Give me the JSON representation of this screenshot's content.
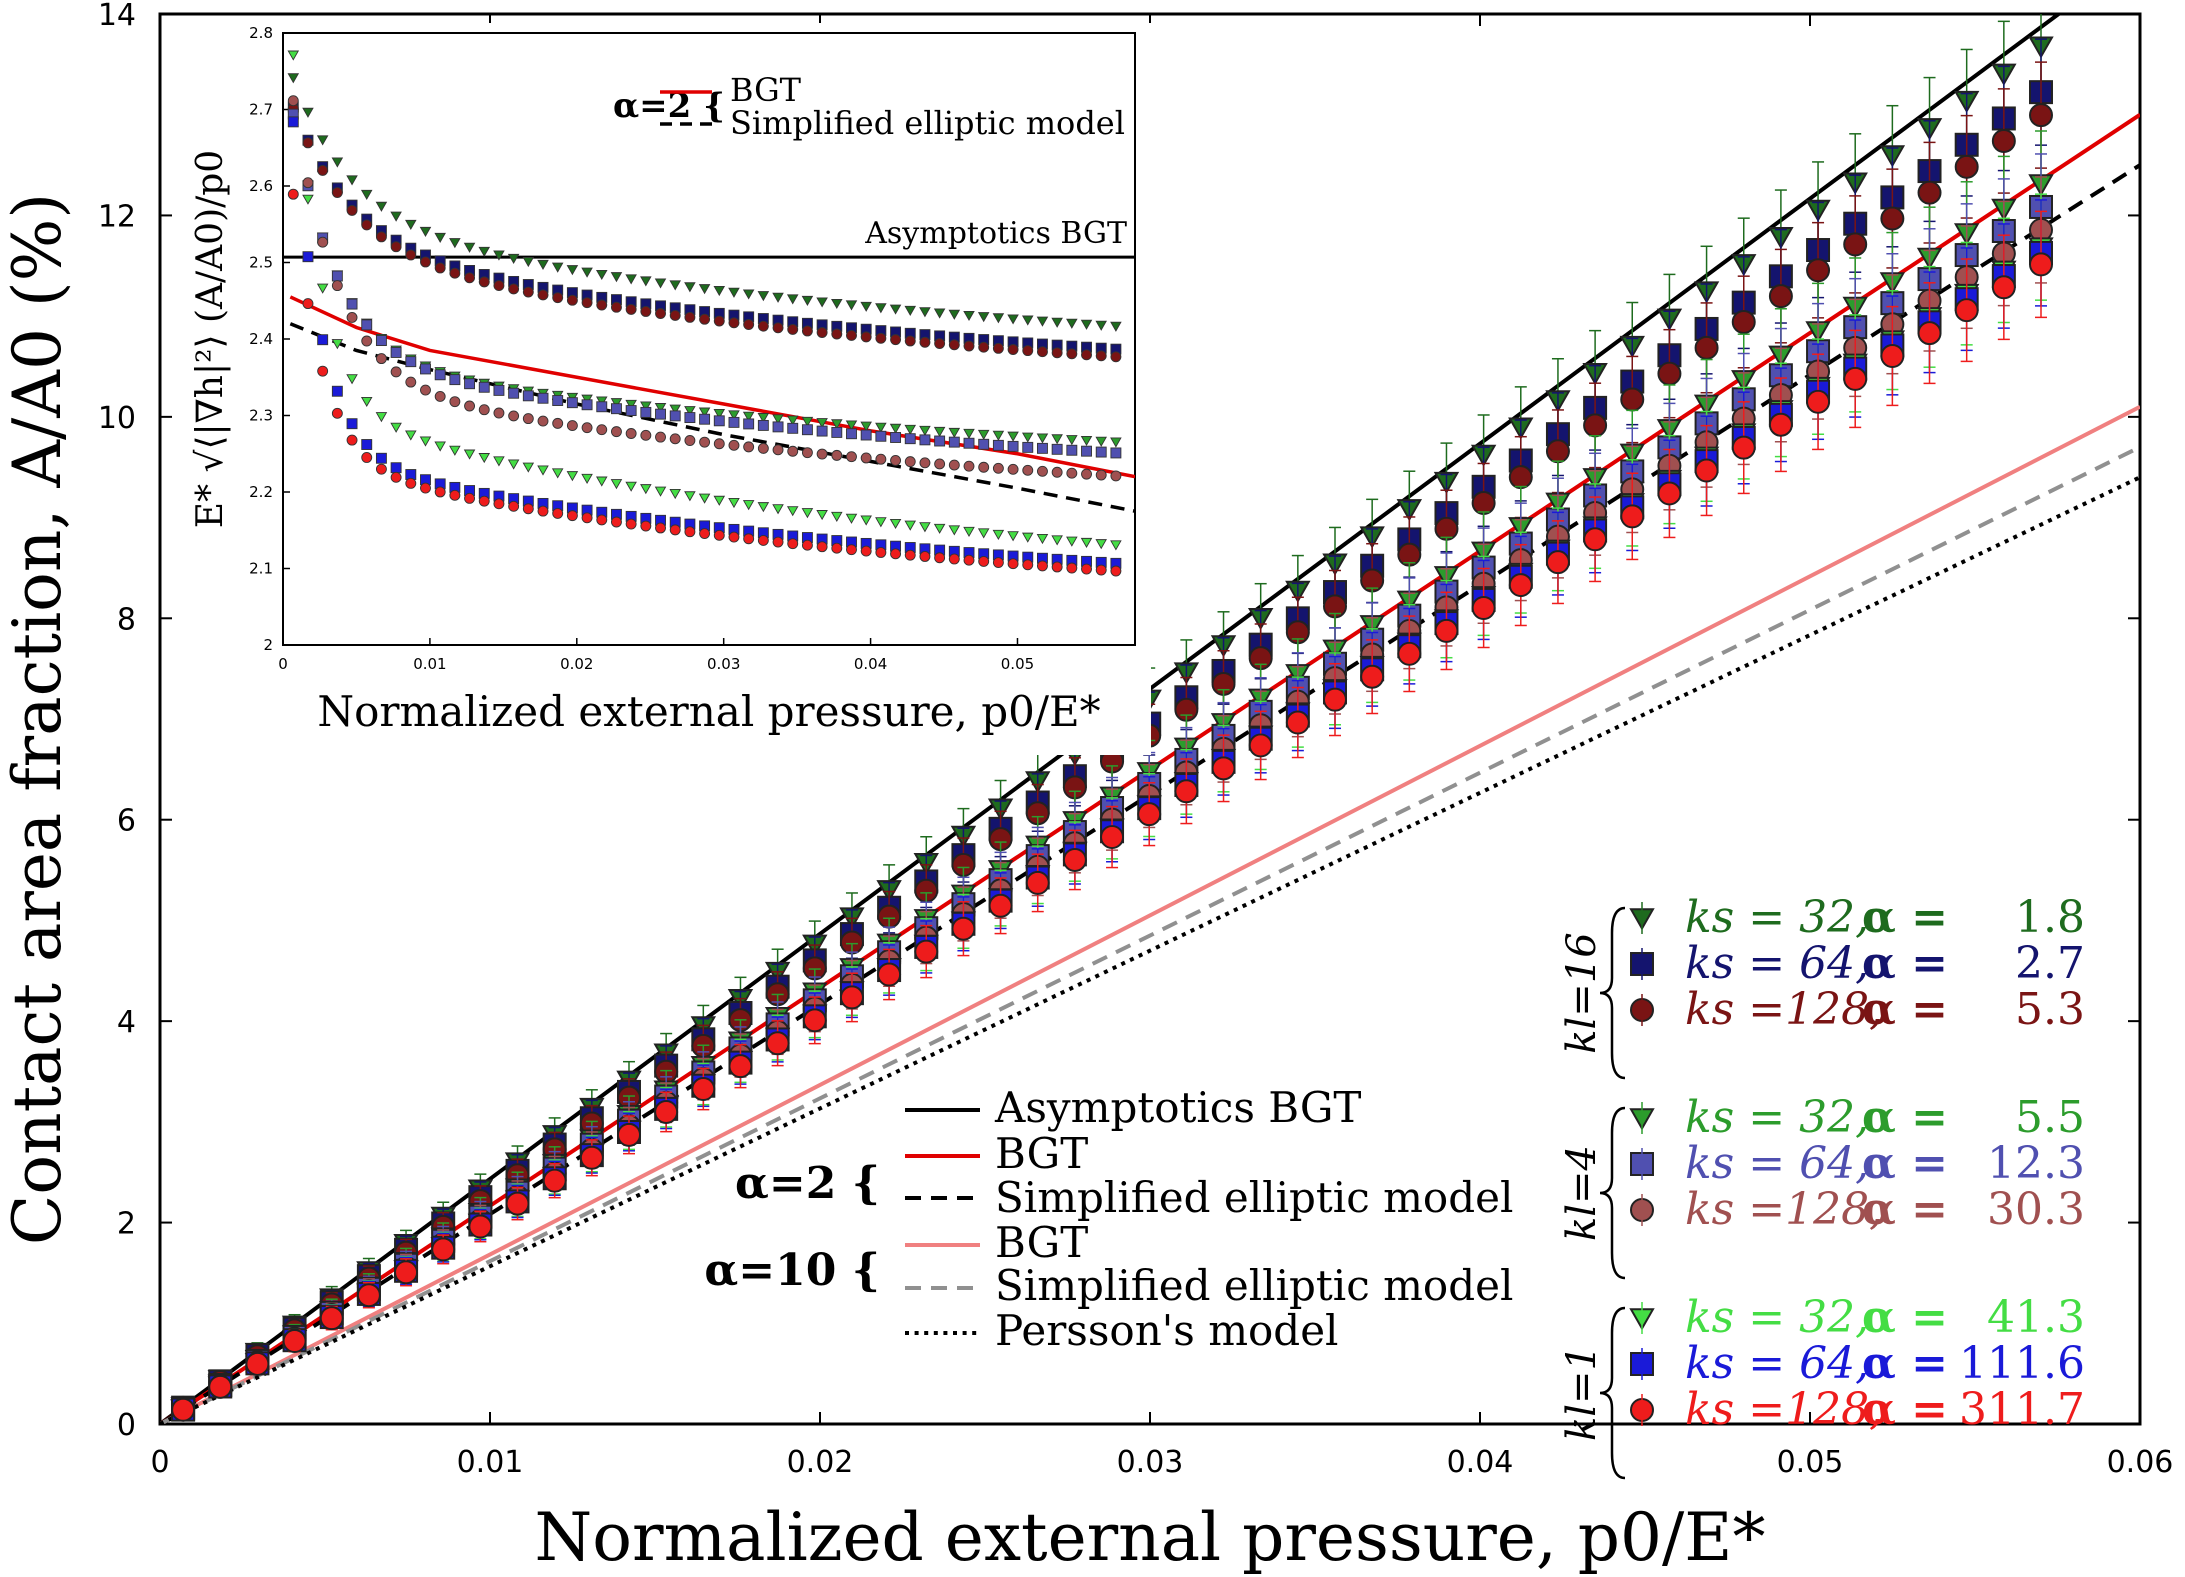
{
  "chart_data": [
    {
      "id": "main",
      "type": "scatter",
      "xlabel": "Normalized external pressure, p0/E*",
      "ylabel": "Contact area fraction, A/A0 (%)",
      "xlim": [
        0,
        0.06
      ],
      "ylim": [
        0,
        14
      ],
      "xticks": [
        "0",
        "0.01",
        "0.02",
        "0.03",
        "0.04",
        "0.05",
        "0.06"
      ],
      "yticks": [
        "0",
        "2",
        "4",
        "6",
        "8",
        "10",
        "12",
        "14"
      ],
      "lines": [
        {
          "name": "Asymptotics BGT",
          "color": "#000000",
          "dash": "solid",
          "x": [
            0,
            0.06
          ],
          "y": [
            0,
            14.6
          ]
        },
        {
          "name": "BGT (alpha=2)",
          "color": "#e00000",
          "dash": "solid",
          "x": [
            0,
            0.06
          ],
          "y": [
            0,
            13.0
          ]
        },
        {
          "name": "Simplified elliptic model (alpha=2)",
          "color": "#000000",
          "dash": "dashed",
          "x": [
            0,
            0.06
          ],
          "y": [
            0,
            12.5
          ]
        },
        {
          "name": "BGT (alpha=10)",
          "color": "#f08080",
          "dash": "solid",
          "x": [
            0,
            0.06
          ],
          "y": [
            0,
            10.1
          ]
        },
        {
          "name": "Simplified elliptic model (alpha=10)",
          "color": "#909090",
          "dash": "dashed",
          "x": [
            0,
            0.06
          ],
          "y": [
            0,
            9.7
          ]
        },
        {
          "name": "Persson's model",
          "color": "#000000",
          "dash": "dotted",
          "x": [
            0,
            0.06
          ],
          "y": [
            0,
            9.4
          ]
        }
      ],
      "series": [
        {
          "name": "kl=16, ks=32",
          "marker": "triangle",
          "color": "#1e6b1e",
          "slope": 240,
          "x_end": 0.057
        },
        {
          "name": "kl=16, ks=64",
          "marker": "square",
          "color": "#14146e",
          "slope": 232,
          "x_end": 0.057
        },
        {
          "name": "kl=16, ks=128",
          "marker": "circle",
          "color": "#7a1414",
          "slope": 228,
          "x_end": 0.057
        },
        {
          "name": "kl=4, ks=32",
          "marker": "triangle",
          "color": "#2c9c2c",
          "slope": 216,
          "x_end": 0.057
        },
        {
          "name": "kl=4, ks=64",
          "marker": "square",
          "color": "#5050b0",
          "slope": 212,
          "x_end": 0.057
        },
        {
          "name": "kl=4, ks=128",
          "marker": "circle",
          "color": "#a05050",
          "slope": 208,
          "x_end": 0.057
        },
        {
          "name": "kl=1, ks=32",
          "marker": "triangle",
          "color": "#44dd44",
          "slope": 205,
          "x_end": 0.057
        },
        {
          "name": "kl=1, ks=64",
          "marker": "square",
          "color": "#1a1ad8",
          "slope": 204,
          "x_end": 0.057
        },
        {
          "name": "kl=1, ks=128",
          "marker": "circle",
          "color": "#ee1c1c",
          "slope": 202,
          "x_end": 0.057
        }
      ],
      "legend_lines": {
        "asym": "Asymptotics BGT",
        "a2": "α=2 {",
        "a2_bgt": "BGT",
        "a2_sem": "Simplified elliptic model",
        "a10": "α=10 {",
        "a10_bgt": "BGT",
        "a10_sem": "Simplified elliptic model",
        "persson": "Persson's model"
      },
      "legend_groups": [
        {
          "kl": "kl=16",
          "rows": [
            {
              "ks": "ks = 32,",
              "alpha": "α =",
              "val": "1.8",
              "color": "#1e6b1e"
            },
            {
              "ks": "ks = 64,",
              "alpha": "α =",
              "val": "2.7",
              "color": "#14146e"
            },
            {
              "ks": "ks =128,",
              "alpha": "α =",
              "val": "5.3",
              "color": "#7a1414"
            }
          ]
        },
        {
          "kl": "kl=4",
          "rows": [
            {
              "ks": "ks = 32,",
              "alpha": "α =",
              "val": "5.5",
              "color": "#2c9c2c"
            },
            {
              "ks": "ks = 64,",
              "alpha": "α =",
              "val": "12.3",
              "color": "#5050b0"
            },
            {
              "ks": "ks =128,",
              "alpha": "α =",
              "val": "30.3",
              "color": "#a05050"
            }
          ]
        },
        {
          "kl": "kl=1",
          "rows": [
            {
              "ks": "ks = 32,",
              "alpha": "α =",
              "val": "41.3",
              "color": "#44dd44"
            },
            {
              "ks": "ks = 64,",
              "alpha": "α =",
              "val": "111.6",
              "color": "#1a1ad8"
            },
            {
              "ks": "ks =128,",
              "alpha": "α =",
              "val": "311.7",
              "color": "#ee1c1c"
            }
          ]
        }
      ]
    },
    {
      "id": "inset",
      "type": "scatter",
      "xlabel": "Normalized external pressure, p0/E*",
      "ylabel": "E* √⟨|∇h|²⟩ (A/A0)/p0",
      "xlim": [
        0,
        0.058
      ],
      "ylim": [
        2,
        2.8
      ],
      "xticks": [
        "0",
        "0.01",
        "0.02",
        "0.03",
        "0.04",
        "0.05"
      ],
      "yticks": [
        "2",
        "2.1",
        "2.2",
        "2.3",
        "2.4",
        "2.5",
        "2.6",
        "2.7",
        "2.8"
      ],
      "asymptote": {
        "label": "Asymptotics BGT",
        "value": 2.507
      },
      "legend": {
        "alpha": "α=2 {",
        "bgt": "BGT",
        "sem": "Simplified elliptic model"
      },
      "curves": [
        {
          "name": "BGT",
          "color": "#e00000",
          "dash": "solid",
          "x": [
            0.0005,
            0.005,
            0.01,
            0.02,
            0.03,
            0.04,
            0.05,
            0.058
          ],
          "y": [
            2.455,
            2.415,
            2.385,
            2.35,
            2.315,
            2.28,
            2.25,
            2.22
          ]
        },
        {
          "name": "Simplified elliptic model",
          "color": "#000000",
          "dash": "dashed",
          "x": [
            0.0005,
            0.005,
            0.01,
            0.02,
            0.03,
            0.04,
            0.05,
            0.058
          ],
          "y": [
            2.42,
            2.385,
            2.36,
            2.315,
            2.275,
            2.24,
            2.205,
            2.175
          ]
        },
        {
          "name": "kl=16, ks=32",
          "marker": "triangle",
          "color": "#1e6b1e",
          "a": 2.36,
          "b": 0.2,
          "c": 0.22,
          "tau": 0.004
        },
        {
          "name": "kl=16, ks=64",
          "marker": "square",
          "color": "#14146e",
          "a": 2.33,
          "b": 0.2,
          "c": 0.21,
          "tau": 0.004
        },
        {
          "name": "kl=16, ks=128",
          "marker": "circle",
          "color": "#7a1414",
          "a": 2.32,
          "b": 0.2,
          "c": 0.22,
          "tau": 0.004
        },
        {
          "name": "kl=4, ks=32",
          "marker": "triangle",
          "color": "#2c9c2c",
          "a": 2.22,
          "b": 0.16,
          "c": 0.4,
          "tau": 0.003
        },
        {
          "name": "kl=4, ks=64",
          "marker": "square",
          "color": "#5050b0",
          "a": 2.2,
          "b": 0.18,
          "c": 0.4,
          "tau": 0.003
        },
        {
          "name": "kl=4, ks=128",
          "marker": "circle",
          "color": "#a05050",
          "a": 2.17,
          "b": 0.18,
          "c": 0.46,
          "tau": 0.003
        },
        {
          "name": "kl=1, ks=32",
          "marker": "triangle",
          "color": "#44dd44",
          "a": 2.06,
          "b": 0.25,
          "c": 0.66,
          "tau": 0.002
        },
        {
          "name": "kl=1, ks=64",
          "marker": "square",
          "color": "#1a1ad8",
          "a": 2.05,
          "b": 0.2,
          "c": 0.62,
          "tau": 0.002
        },
        {
          "name": "kl=1, ks=128",
          "marker": "circle",
          "color": "#ee1c1c",
          "a": 2.04,
          "b": 0.2,
          "c": 0.5,
          "tau": 0.002
        }
      ]
    }
  ]
}
